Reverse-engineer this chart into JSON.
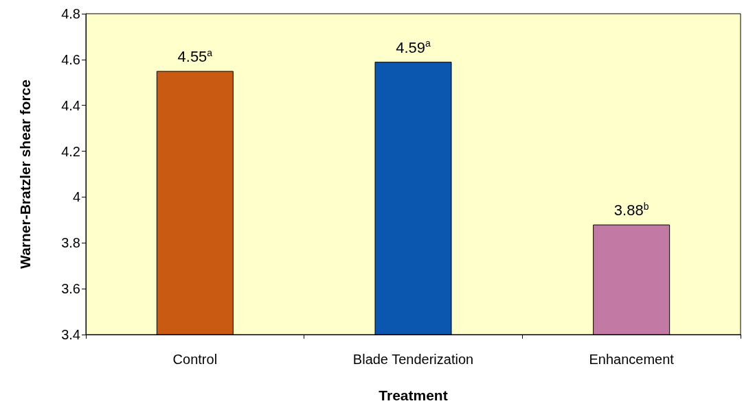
{
  "chart_data": {
    "type": "bar",
    "xlabel": "Treatment",
    "ylabel": "Warner-Bratzler shear force",
    "categories": [
      "Control",
      "Blade Tenderization",
      "Enhancement"
    ],
    "values": [
      4.55,
      4.59,
      3.88
    ],
    "colors": [
      "#c85a12",
      "#0b57b0",
      "#c27aa4"
    ],
    "value_labels": [
      "4.55$^{a}$",
      "4.59$^{a}$",
      "3.88$^{b}$"
    ],
    "ylim": [
      3.4,
      4.8
    ],
    "yticks": [
      3.4,
      3.6,
      3.8,
      4,
      4.2,
      4.4,
      4.6,
      4.8
    ],
    "grid": false
  }
}
